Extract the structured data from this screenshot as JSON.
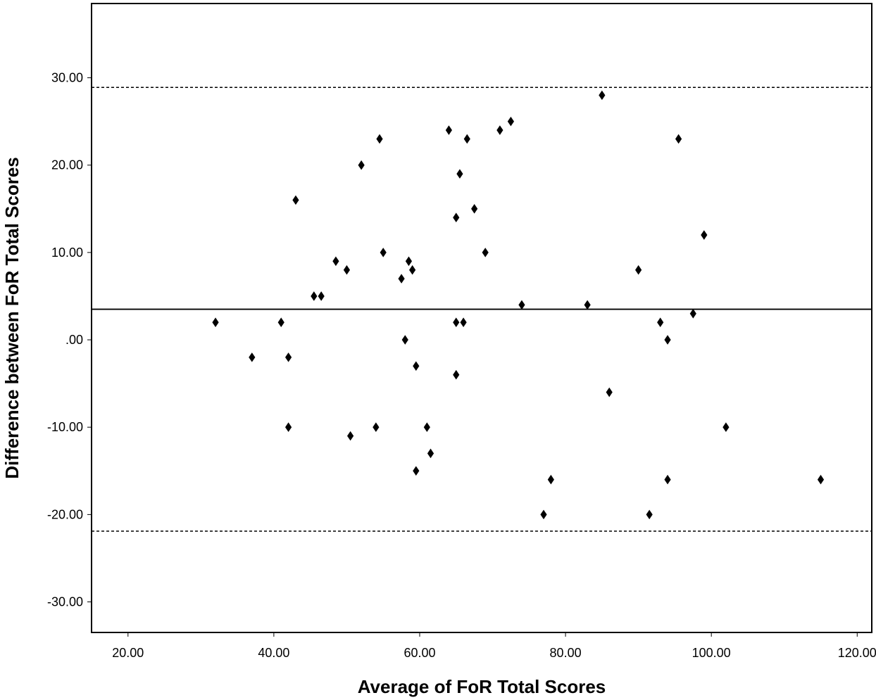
{
  "chart_data": {
    "type": "scatter",
    "title": "",
    "xlabel": "Average of FoR Total Scores",
    "ylabel": "Difference between FoR Total Scores",
    "xlim": [
      15,
      122
    ],
    "ylim": [
      -33.5,
      38.5
    ],
    "x_ticks": [
      20,
      40,
      60,
      80,
      100,
      120
    ],
    "x_tick_labels": [
      "20.00",
      "40.00",
      "60.00",
      "80.00",
      "100.00",
      "120.00"
    ],
    "y_ticks": [
      30,
      20,
      10,
      0,
      -10,
      -20,
      -30
    ],
    "y_tick_labels": [
      "30.00",
      "20.00",
      "10.00",
      ".00",
      "-10.00",
      "-20.00",
      "-30.00"
    ],
    "grid": false,
    "legend": "none",
    "marker": "diamond",
    "marker_color": "#000000",
    "reference_lines": [
      {
        "type": "mean",
        "style": "solid",
        "y": 3.5
      },
      {
        "type": "upper-limit",
        "style": "dashed",
        "y": 28.9
      },
      {
        "type": "lower-limit",
        "style": "dashed",
        "y": -21.9
      }
    ],
    "points": [
      {
        "x": 32,
        "y": 2
      },
      {
        "x": 37,
        "y": -2
      },
      {
        "x": 41,
        "y": 2
      },
      {
        "x": 42,
        "y": -2
      },
      {
        "x": 42,
        "y": -10
      },
      {
        "x": 43,
        "y": 16
      },
      {
        "x": 45.5,
        "y": 5
      },
      {
        "x": 46.5,
        "y": 5
      },
      {
        "x": 48.5,
        "y": 9
      },
      {
        "x": 50,
        "y": 8
      },
      {
        "x": 50.5,
        "y": -11
      },
      {
        "x": 52,
        "y": 20
      },
      {
        "x": 54,
        "y": -10
      },
      {
        "x": 54.5,
        "y": 23
      },
      {
        "x": 55,
        "y": 10
      },
      {
        "x": 57.5,
        "y": 7
      },
      {
        "x": 58,
        "y": 0
      },
      {
        "x": 58.5,
        "y": 9
      },
      {
        "x": 59,
        "y": 8
      },
      {
        "x": 59.5,
        "y": -3
      },
      {
        "x": 59.5,
        "y": -15
      },
      {
        "x": 61,
        "y": -10
      },
      {
        "x": 61.5,
        "y": -13
      },
      {
        "x": 64,
        "y": 24
      },
      {
        "x": 65,
        "y": 14
      },
      {
        "x": 65,
        "y": 2
      },
      {
        "x": 65,
        "y": -4
      },
      {
        "x": 65.5,
        "y": 19
      },
      {
        "x": 66,
        "y": 2
      },
      {
        "x": 66.5,
        "y": 23
      },
      {
        "x": 67.5,
        "y": 15
      },
      {
        "x": 69,
        "y": 10
      },
      {
        "x": 71,
        "y": 24
      },
      {
        "x": 72.5,
        "y": 25
      },
      {
        "x": 74,
        "y": 4
      },
      {
        "x": 77,
        "y": -20
      },
      {
        "x": 78,
        "y": -16
      },
      {
        "x": 83,
        "y": 4
      },
      {
        "x": 85,
        "y": 28
      },
      {
        "x": 86,
        "y": -6
      },
      {
        "x": 90,
        "y": 8
      },
      {
        "x": 91.5,
        "y": -20
      },
      {
        "x": 93,
        "y": 2
      },
      {
        "x": 94,
        "y": 0
      },
      {
        "x": 94,
        "y": -16
      },
      {
        "x": 95.5,
        "y": 23
      },
      {
        "x": 97.5,
        "y": 3
      },
      {
        "x": 99,
        "y": 12
      },
      {
        "x": 102,
        "y": -10
      },
      {
        "x": 115,
        "y": -16
      }
    ]
  }
}
